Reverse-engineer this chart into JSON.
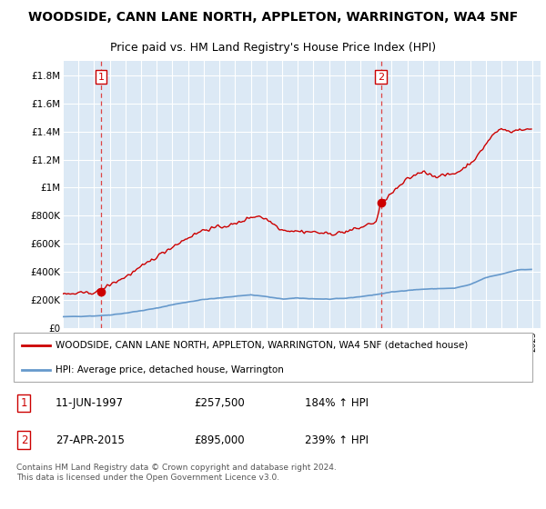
{
  "title": "WOODSIDE, CANN LANE NORTH, APPLETON, WARRINGTON, WA4 5NF",
  "subtitle": "Price paid vs. HM Land Registry's House Price Index (HPI)",
  "ylim": [
    0,
    1900000
  ],
  "yticks": [
    0,
    200000,
    400000,
    600000,
    800000,
    1000000,
    1200000,
    1400000,
    1600000,
    1800000
  ],
  "ytick_labels": [
    "£0",
    "£200K",
    "£400K",
    "£600K",
    "£800K",
    "£1M",
    "£1.2M",
    "£1.4M",
    "£1.6M",
    "£1.8M"
  ],
  "xlim_start": 1995.0,
  "xlim_end": 2025.5,
  "sale1_x": 1997.44,
  "sale1_y": 257500,
  "sale2_x": 2015.32,
  "sale2_y": 895000,
  "marker_color": "#cc0000",
  "hpi_line_color": "#6699cc",
  "price_line_color": "#cc0000",
  "legend_label_price": "WOODSIDE, CANN LANE NORTH, APPLETON, WARRINGTON, WA4 5NF (detached house)",
  "legend_label_hpi": "HPI: Average price, detached house, Warrington",
  "note1_label": "1",
  "note1_date": "11-JUN-1997",
  "note1_price": "£257,500",
  "note1_hpi": "184% ↑ HPI",
  "note2_label": "2",
  "note2_date": "27-APR-2015",
  "note2_price": "£895,000",
  "note2_hpi": "239% ↑ HPI",
  "footer": "Contains HM Land Registry data © Crown copyright and database right 2024.\nThis data is licensed under the Open Government Licence v3.0.",
  "plot_bg_color": "#dce9f5",
  "grid_color": "#ffffff",
  "title_fontsize": 10,
  "subtitle_fontsize": 9
}
